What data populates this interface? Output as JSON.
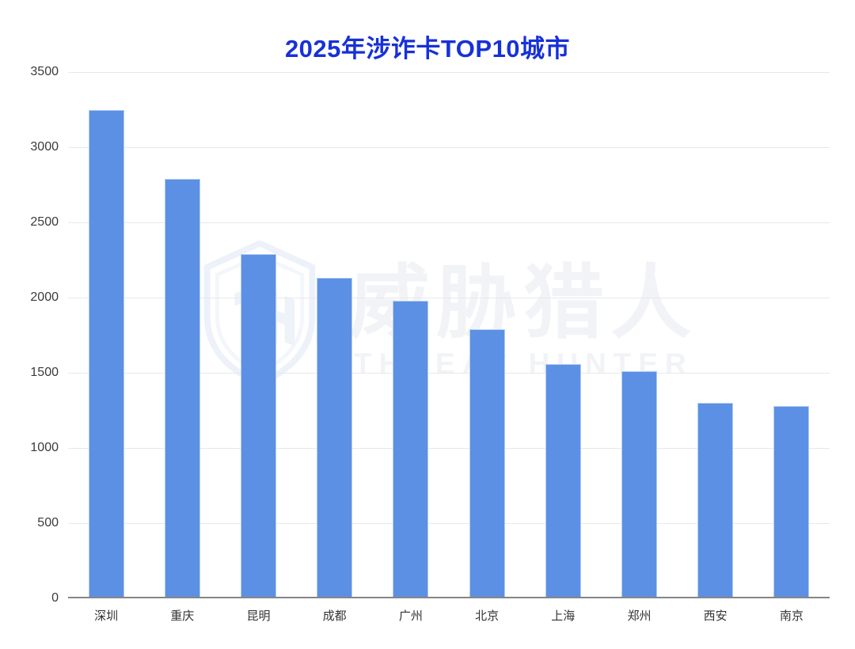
{
  "title": {
    "text": "2025年涉诈卡TOP10城市",
    "color": "#1731d8"
  },
  "watermark": {
    "cn": "威胁猎人",
    "en": "THREAT HUNTER",
    "logo_icon": "shield-th-logo",
    "color": "#f2f3f6"
  },
  "chart_data": {
    "type": "bar",
    "title": "2025年涉诈卡TOP10城市",
    "categories": [
      "深圳",
      "重庆",
      "昆明",
      "成都",
      "广州",
      "北京",
      "上海",
      "郑州",
      "西安",
      "南京"
    ],
    "values": [
      3250,
      2790,
      2290,
      2130,
      1980,
      1790,
      1560,
      1510,
      1300,
      1280
    ],
    "xlabel": "",
    "ylabel": "",
    "ylim": [
      0,
      3500
    ],
    "yticks": [
      0,
      500,
      1000,
      1500,
      2000,
      2500,
      3000,
      3500
    ],
    "bar_color": "#5b90e4",
    "grid": true,
    "legend": "none"
  }
}
